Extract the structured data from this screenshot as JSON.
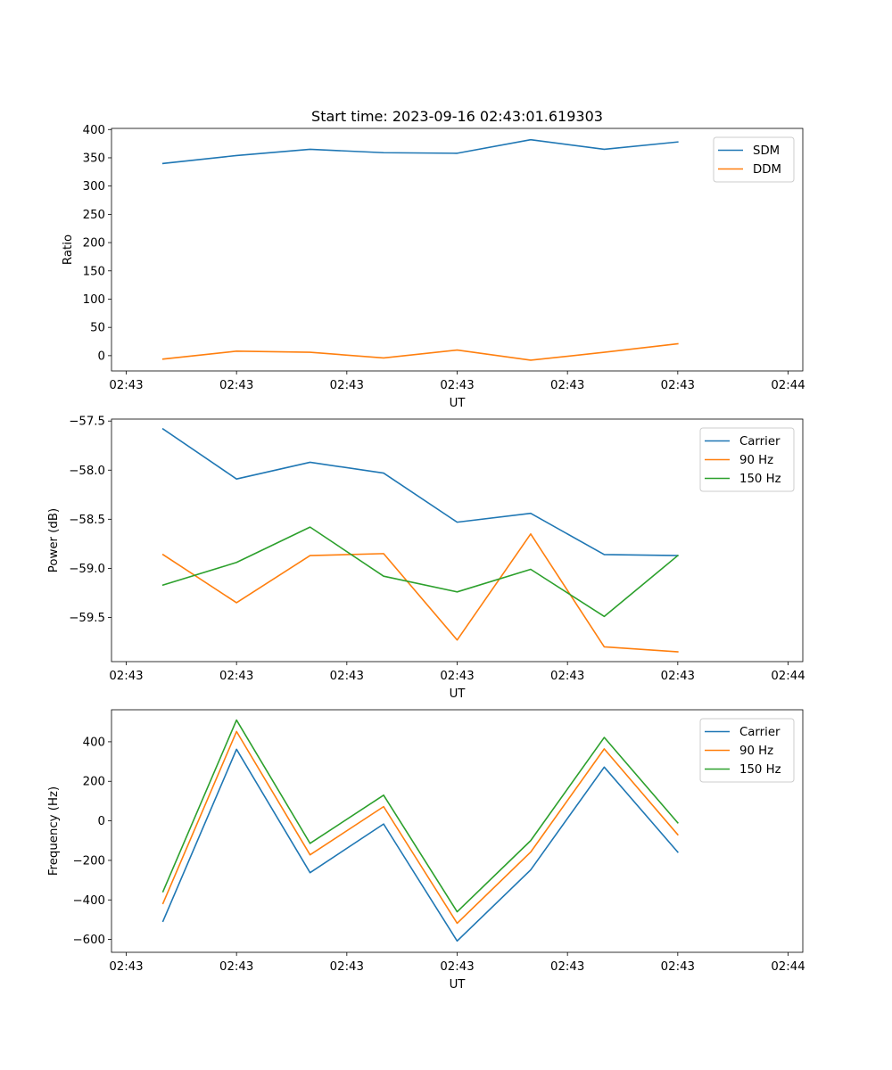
{
  "chart_data": [
    {
      "type": "line",
      "title": "Start time: 2023-09-16 02:43:01.619303",
      "xlabel": "UT",
      "ylabel": "Ratio",
      "ylim": [
        -27,
        402
      ],
      "yticks": [
        0,
        50,
        100,
        150,
        200,
        250,
        300,
        350,
        400
      ],
      "ytick_labels": [
        "0",
        "50",
        "100",
        "150",
        "200",
        "250",
        "300",
        "350",
        "400"
      ],
      "xlim": [
        -0.7,
        8.7
      ],
      "x": [
        0,
        1,
        2,
        3,
        4,
        5,
        6,
        7
      ],
      "xticks": [
        -0.5,
        1,
        2.5,
        4,
        5.5,
        7,
        8.5
      ],
      "xtick_labels": [
        "02:43",
        "02:43",
        "02:43",
        "02:43",
        "02:43",
        "02:43",
        "02:44"
      ],
      "legend_loc": "upper right",
      "series": [
        {
          "name": "SDM",
          "color": "#1f77b4",
          "values": [
            340,
            354,
            365,
            359,
            358,
            382,
            365,
            378
          ]
        },
        {
          "name": "DDM",
          "color": "#ff7f0e",
          "values": [
            -6,
            8,
            6,
            -4,
            10,
            -8,
            6,
            21
          ]
        }
      ]
    },
    {
      "type": "line",
      "title": "",
      "xlabel": "UT",
      "ylabel": "Power (dB)",
      "ylim": [
        -59.95,
        -57.48
      ],
      "yticks": [
        -59.5,
        -59.0,
        -58.5,
        -58.0,
        -57.5
      ],
      "ytick_labels": [
        "−59.5",
        "−59.0",
        "−58.5",
        "−58.0",
        "−57.5"
      ],
      "xlim": [
        -0.7,
        8.7
      ],
      "x": [
        0,
        1,
        2,
        3,
        4,
        5,
        6,
        7
      ],
      "xticks": [
        -0.5,
        1,
        2.5,
        4,
        5.5,
        7,
        8.5
      ],
      "xtick_labels": [
        "02:43",
        "02:43",
        "02:43",
        "02:43",
        "02:43",
        "02:43",
        "02:44"
      ],
      "legend_loc": "upper right",
      "series": [
        {
          "name": "Carrier",
          "color": "#1f77b4",
          "values": [
            -57.58,
            -58.09,
            -57.92,
            -58.03,
            -58.53,
            -58.44,
            -58.86,
            -58.87
          ]
        },
        {
          "name": "90 Hz",
          "color": "#ff7f0e",
          "values": [
            -58.86,
            -59.35,
            -58.87,
            -58.85,
            -59.73,
            -58.65,
            -59.8,
            -59.85
          ]
        },
        {
          "name": "150 Hz",
          "color": "#2ca02c",
          "values": [
            -59.17,
            -58.94,
            -58.58,
            -59.08,
            -59.24,
            -59.01,
            -59.49,
            -58.87
          ]
        }
      ]
    },
    {
      "type": "line",
      "title": "",
      "xlabel": "UT",
      "ylabel": "Frequency (Hz)",
      "ylim": [
        -665,
        562
      ],
      "yticks": [
        -600,
        -400,
        -200,
        0,
        200,
        400
      ],
      "ytick_labels": [
        "−600",
        "−400",
        "−200",
        "0",
        "200",
        "400"
      ],
      "xlim": [
        -0.7,
        8.7
      ],
      "x": [
        0,
        1,
        2,
        3,
        4,
        5,
        6,
        7
      ],
      "xticks": [
        -0.5,
        1,
        2.5,
        4,
        5.5,
        7,
        8.5
      ],
      "xtick_labels": [
        "02:43",
        "02:43",
        "02:43",
        "02:43",
        "02:43",
        "02:43",
        "02:44"
      ],
      "legend_loc": "upper right",
      "series": [
        {
          "name": "Carrier",
          "color": "#1f77b4",
          "values": [
            -508,
            362,
            -262,
            -16,
            -608,
            -248,
            272,
            -158
          ]
        },
        {
          "name": "90 Hz",
          "color": "#ff7f0e",
          "values": [
            -418,
            452,
            -172,
            72,
            -518,
            -158,
            364,
            -70
          ]
        },
        {
          "name": "150 Hz",
          "color": "#2ca02c",
          "values": [
            -358,
            510,
            -114,
            130,
            -460,
            -100,
            422,
            -10
          ]
        }
      ]
    }
  ]
}
